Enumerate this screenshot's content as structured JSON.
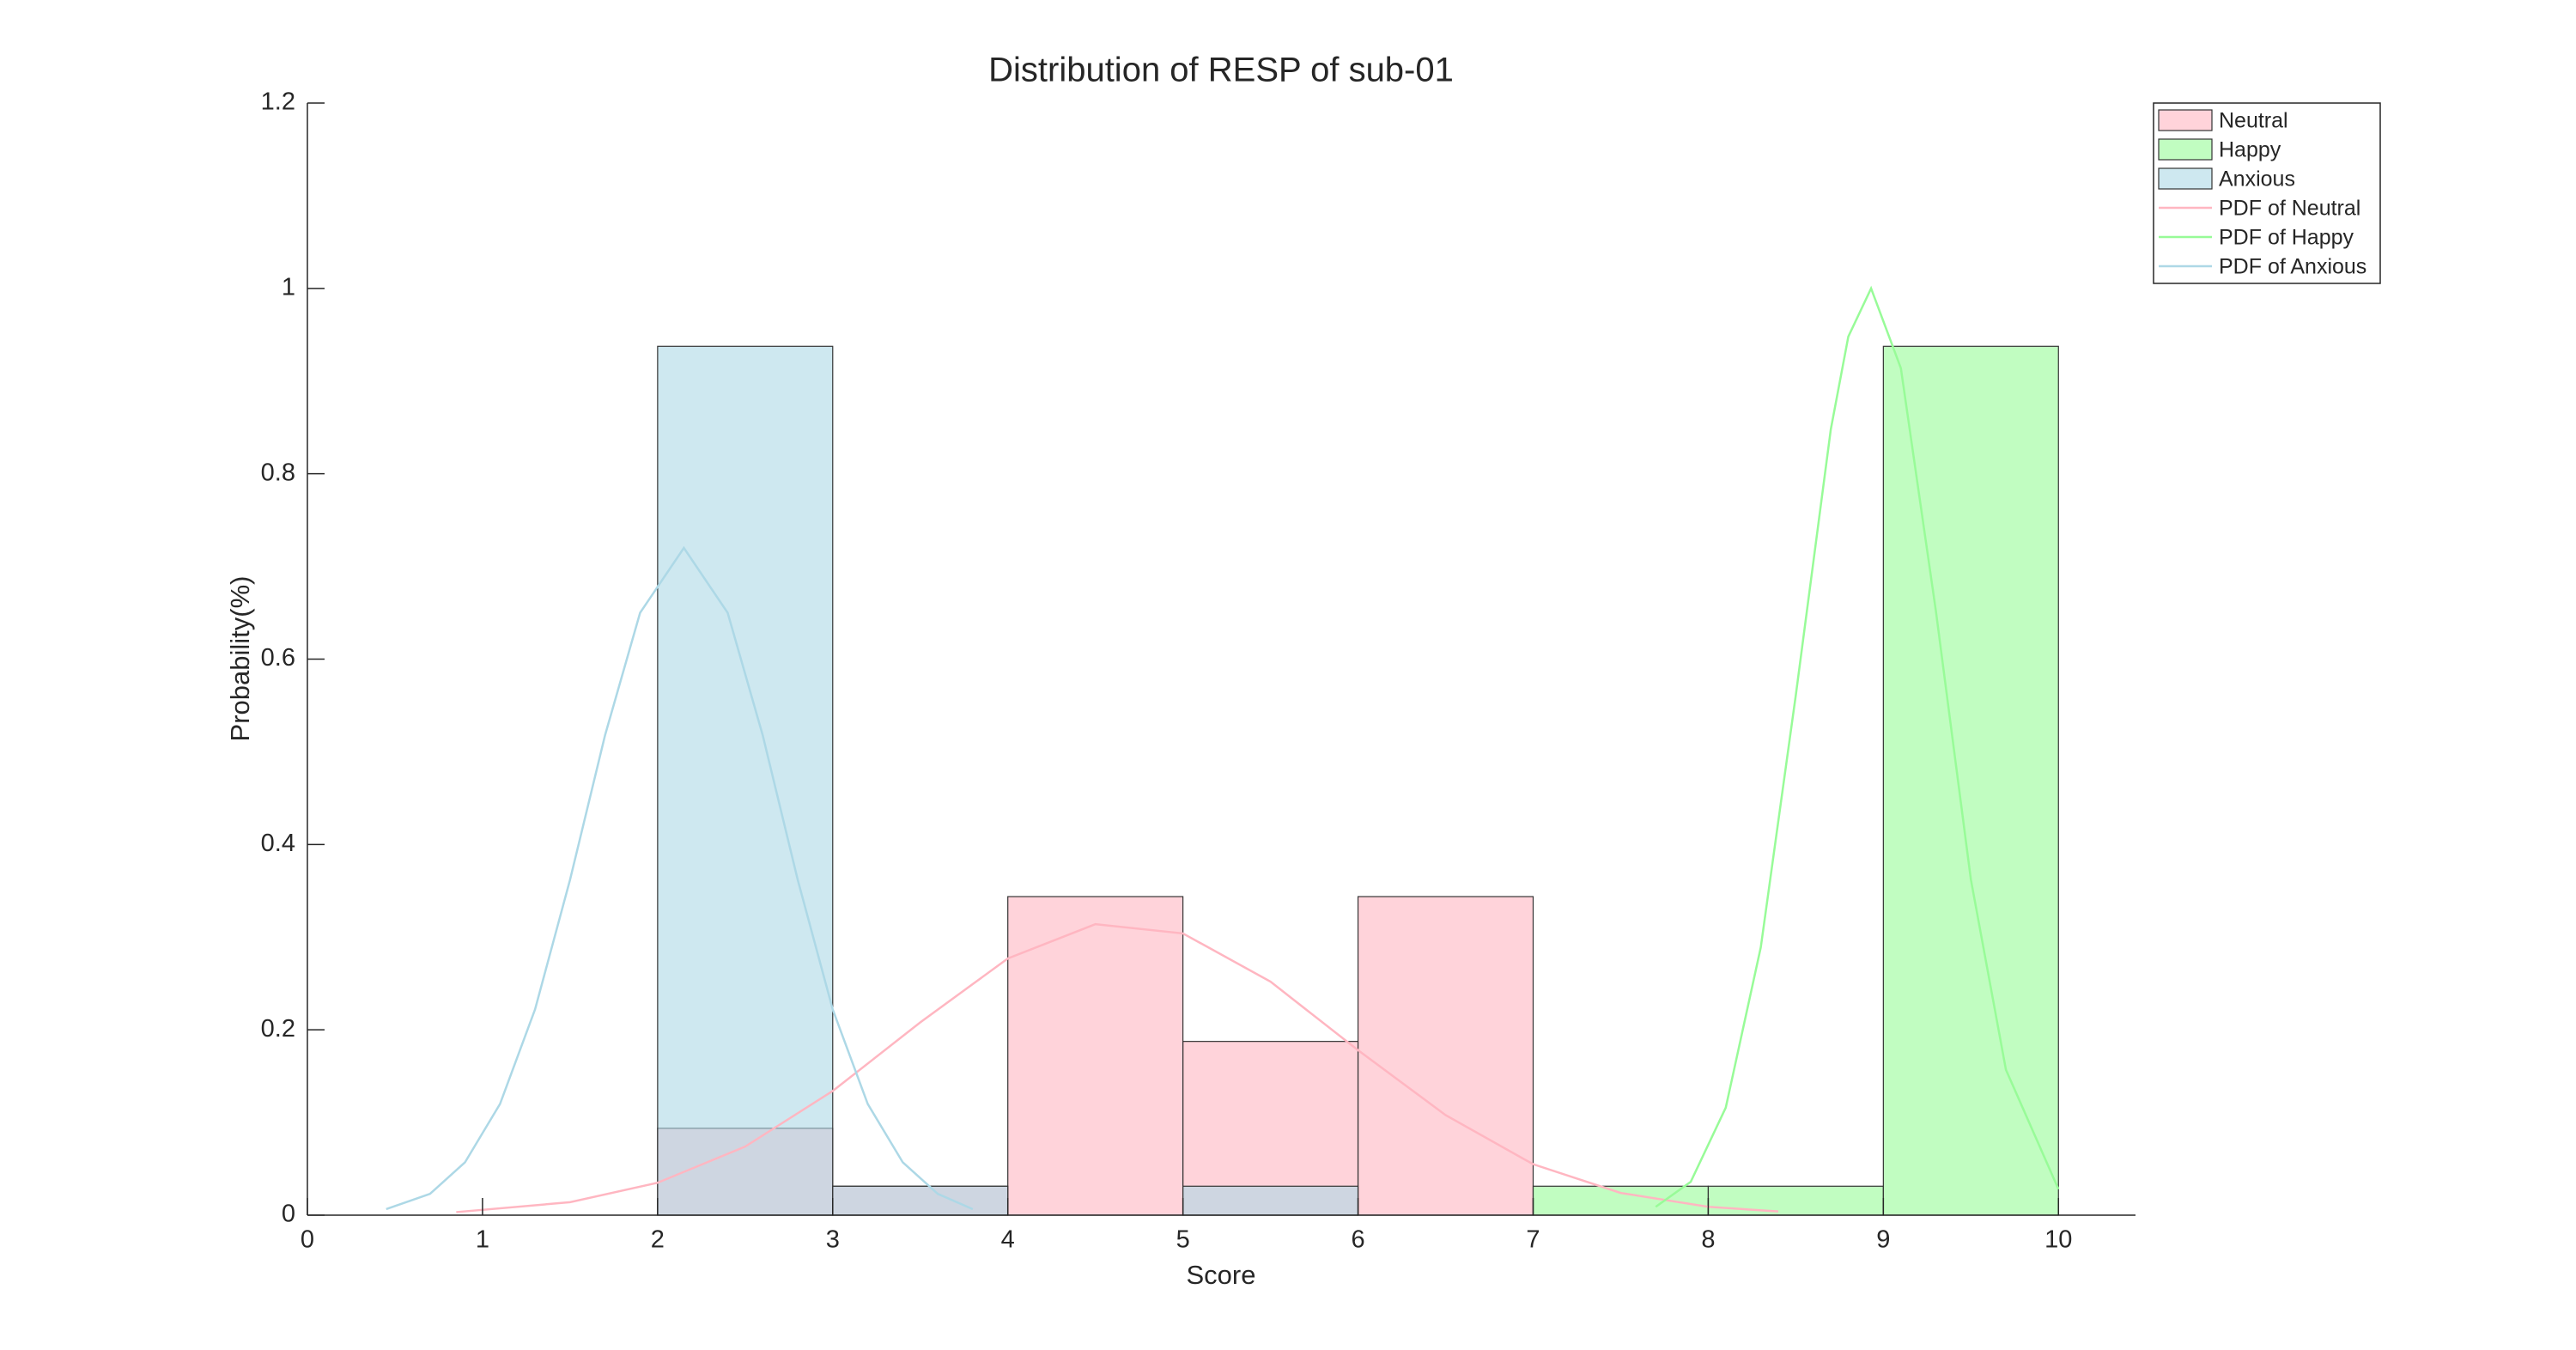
{
  "chart_data": {
    "type": "histogram",
    "title": "Distribution of RESP of sub-01",
    "x_label": "Score",
    "y_label": "Probability(%)",
    "xlim": [
      0,
      10.44
    ],
    "ylim": [
      0,
      1.2
    ],
    "xticks": [
      0,
      1,
      2,
      3,
      4,
      5,
      6,
      7,
      8,
      9,
      10
    ],
    "yticks": [
      0,
      0.2,
      0.4,
      0.6,
      0.8,
      1,
      1.2
    ],
    "grid": false,
    "legend": "outside upper right",
    "series": [
      {
        "name": "Neutral",
        "color": "#ffb6c1",
        "bins": [
          2,
          3,
          4,
          5,
          6,
          7
        ],
        "values": [
          0.09375,
          0.03125,
          0.34375,
          0.1875,
          0.34375
        ]
      },
      {
        "name": "Happy",
        "color": "#98fb98",
        "bins": [
          7,
          8,
          9,
          10
        ],
        "values": [
          0.03125,
          0.03125,
          0.9375
        ]
      },
      {
        "name": "Anxious",
        "color": "#add8e6",
        "bins": [
          2,
          3,
          4,
          5,
          6
        ],
        "values": [
          0.9375,
          0.03125,
          0,
          0.03125
        ]
      }
    ],
    "lines": [
      {
        "type": "line",
        "name": "PDF of Neutral",
        "color": "#ffb6c1",
        "x": [
          0.85,
          1.5,
          2,
          2.5,
          3,
          3.5,
          4,
          4.5,
          5,
          5.5,
          6,
          6.5,
          7,
          7.5,
          8,
          8.4
        ],
        "values": [
          0.0033,
          0.014,
          0.035,
          0.074,
          0.134,
          0.208,
          0.277,
          0.314,
          0.304,
          0.252,
          0.178,
          0.108,
          0.055,
          0.024,
          0.009,
          0.004
        ]
      },
      {
        "type": "line",
        "name": "PDF of Happy",
        "color": "#98fb98",
        "x": [
          7.7,
          7.9,
          8.1,
          8.3,
          8.5,
          8.7,
          8.8,
          8.93,
          9.1,
          9.3,
          9.5,
          9.7,
          10
        ],
        "values": [
          0.009,
          0.036,
          0.116,
          0.289,
          0.561,
          0.848,
          0.948,
          1.0,
          0.914,
          0.652,
          0.362,
          0.157,
          0.028
        ]
      },
      {
        "type": "line",
        "name": "PDF of Anxious",
        "color": "#add8e6",
        "x": [
          0.45,
          0.7,
          0.9,
          1.1,
          1.3,
          1.5,
          1.7,
          1.9,
          2.15,
          2.4,
          2.6,
          2.8,
          3.0,
          3.2,
          3.4,
          3.6,
          3.8
        ],
        "values": [
          0.0065,
          0.023,
          0.057,
          0.12,
          0.222,
          0.362,
          0.518,
          0.65,
          0.72,
          0.65,
          0.518,
          0.362,
          0.222,
          0.12,
          0.057,
          0.023,
          0.0065
        ]
      }
    ]
  }
}
